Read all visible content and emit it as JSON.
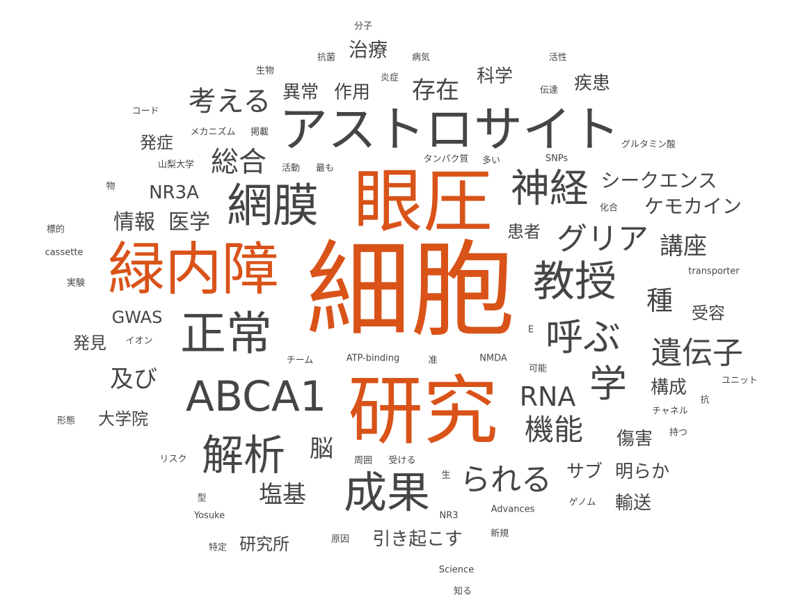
{
  "colors": {
    "highlight": "#d95319",
    "text": "#454545",
    "background": "#ffffff"
  },
  "words": [
    {
      "text": "細胞",
      "highlight": true
    },
    {
      "text": "研究",
      "highlight": true
    },
    {
      "text": "眼圧",
      "highlight": true
    },
    {
      "text": "緑内障",
      "highlight": true
    },
    {
      "text": "アストロサイト",
      "highlight": false
    },
    {
      "text": "ABCA1",
      "highlight": false
    },
    {
      "text": "正常",
      "highlight": false
    },
    {
      "text": "網膜",
      "highlight": false
    },
    {
      "text": "神経",
      "highlight": false
    },
    {
      "text": "教授",
      "highlight": false
    },
    {
      "text": "成果",
      "highlight": false
    },
    {
      "text": "解析",
      "highlight": false
    },
    {
      "text": "呼ぶ",
      "highlight": false
    },
    {
      "text": "グリア",
      "highlight": false
    },
    {
      "text": "遺伝子",
      "highlight": false
    },
    {
      "text": "られる",
      "highlight": false
    },
    {
      "text": "学",
      "highlight": false
    },
    {
      "text": "機能",
      "highlight": false
    },
    {
      "text": "考える",
      "highlight": false
    },
    {
      "text": "総合",
      "highlight": false
    },
    {
      "text": "存在",
      "highlight": false
    },
    {
      "text": "RNA",
      "highlight": false
    },
    {
      "text": "講座",
      "highlight": false
    },
    {
      "text": "種",
      "highlight": false
    },
    {
      "text": "シークエンス",
      "highlight": false
    },
    {
      "text": "ケモカイン",
      "highlight": false
    },
    {
      "text": "塩基",
      "highlight": false
    },
    {
      "text": "及び",
      "highlight": false
    },
    {
      "text": "情報",
      "highlight": false
    },
    {
      "text": "医学",
      "highlight": false
    },
    {
      "text": "NR3A",
      "highlight": false
    },
    {
      "text": "脳",
      "highlight": false
    },
    {
      "text": "治療",
      "highlight": false
    },
    {
      "text": "異常",
      "highlight": false
    },
    {
      "text": "作用",
      "highlight": false
    },
    {
      "text": "科学",
      "highlight": false
    },
    {
      "text": "疾患",
      "highlight": false
    },
    {
      "text": "引き起こす",
      "highlight": false
    },
    {
      "text": "サブ",
      "highlight": false
    },
    {
      "text": "明らか",
      "highlight": false
    },
    {
      "text": "構成",
      "highlight": false
    },
    {
      "text": "傷害",
      "highlight": false
    },
    {
      "text": "輸送",
      "highlight": false
    },
    {
      "text": "患者",
      "highlight": false
    },
    {
      "text": "大学院",
      "highlight": false
    },
    {
      "text": "研究所",
      "highlight": false
    },
    {
      "text": "発症",
      "highlight": false
    },
    {
      "text": "GWAS",
      "highlight": false
    },
    {
      "text": "発見",
      "highlight": false
    },
    {
      "text": "受容",
      "highlight": false
    },
    {
      "text": "分子",
      "highlight": false
    },
    {
      "text": "抗菌",
      "highlight": false
    },
    {
      "text": "病気",
      "highlight": false
    },
    {
      "text": "活性",
      "highlight": false
    },
    {
      "text": "生物",
      "highlight": false
    },
    {
      "text": "炎症",
      "highlight": false
    },
    {
      "text": "伝達",
      "highlight": false
    },
    {
      "text": "コード",
      "highlight": false
    },
    {
      "text": "メカニズム",
      "highlight": false
    },
    {
      "text": "掲載",
      "highlight": false
    },
    {
      "text": "グルタミン酸",
      "highlight": false
    },
    {
      "text": "タンパク質",
      "highlight": false
    },
    {
      "text": "SNPs",
      "highlight": false
    },
    {
      "text": "山梨大学",
      "highlight": false
    },
    {
      "text": "活動",
      "highlight": false
    },
    {
      "text": "最も",
      "highlight": false
    },
    {
      "text": "多い",
      "highlight": false
    },
    {
      "text": "物",
      "highlight": false
    },
    {
      "text": "化合",
      "highlight": false
    },
    {
      "text": "標的",
      "highlight": false
    },
    {
      "text": "cassette",
      "highlight": false
    },
    {
      "text": "transporter",
      "highlight": false
    },
    {
      "text": "実験",
      "highlight": false
    },
    {
      "text": "イオン",
      "highlight": false
    },
    {
      "text": "E",
      "highlight": false
    },
    {
      "text": "チーム",
      "highlight": false
    },
    {
      "text": "ATP-binding",
      "highlight": false
    },
    {
      "text": "准",
      "highlight": false
    },
    {
      "text": "NMDA",
      "highlight": false
    },
    {
      "text": "可能",
      "highlight": false
    },
    {
      "text": "ユニット",
      "highlight": false
    },
    {
      "text": "抗",
      "highlight": false
    },
    {
      "text": "チャネル",
      "highlight": false
    },
    {
      "text": "形態",
      "highlight": false
    },
    {
      "text": "持つ",
      "highlight": false
    },
    {
      "text": "リスク",
      "highlight": false
    },
    {
      "text": "周囲",
      "highlight": false
    },
    {
      "text": "受ける",
      "highlight": false
    },
    {
      "text": "生",
      "highlight": false
    },
    {
      "text": "型",
      "highlight": false
    },
    {
      "text": "ゲノム",
      "highlight": false
    },
    {
      "text": "Yosuke",
      "highlight": false
    },
    {
      "text": "NR3",
      "highlight": false
    },
    {
      "text": "Advances",
      "highlight": false
    },
    {
      "text": "新規",
      "highlight": false
    },
    {
      "text": "特定",
      "highlight": false
    },
    {
      "text": "原因",
      "highlight": false
    },
    {
      "text": "Science",
      "highlight": false
    },
    {
      "text": "知る",
      "highlight": false
    }
  ]
}
